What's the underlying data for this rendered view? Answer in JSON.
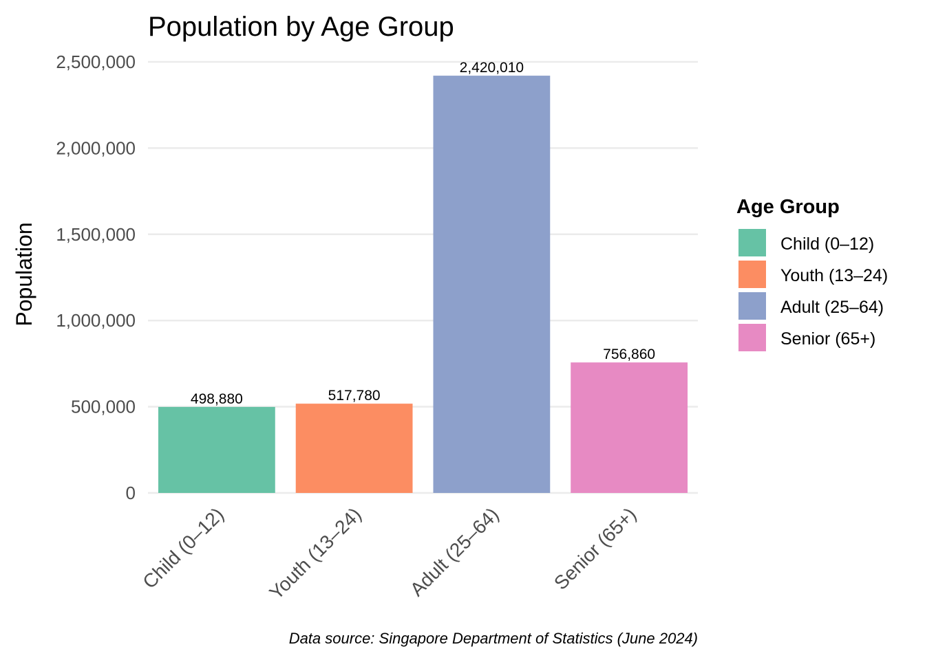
{
  "chart_data": {
    "type": "bar",
    "title": "Population by Age Group",
    "xlabel": "",
    "ylabel": "Population",
    "categories": [
      "Child (0–12)",
      "Youth (13–24)",
      "Adult (25–64)",
      "Senior (65+)"
    ],
    "values": [
      498880,
      517780,
      2420010,
      756860
    ],
    "value_labels": [
      "498,880",
      "517,780",
      "2,420,010",
      "756,860"
    ],
    "colors": [
      "#66c2a5",
      "#fc8d62",
      "#8da0cb",
      "#e78ac3"
    ],
    "ylim": [
      0,
      2500000
    ],
    "yticks": [
      0,
      500000,
      1000000,
      1500000,
      2000000,
      2500000
    ],
    "ytick_labels": [
      "0",
      "500,000",
      "1,000,000",
      "1,500,000",
      "2,000,000",
      "2,500,000"
    ],
    "grid": true,
    "legend": {
      "title": "Age Group",
      "position": "right",
      "entries": [
        "Child (0–12)",
        "Youth (13–24)",
        "Adult (25–64)",
        "Senior (65+)"
      ]
    },
    "caption": "Data source: Singapore Department of Statistics (June 2024)"
  }
}
